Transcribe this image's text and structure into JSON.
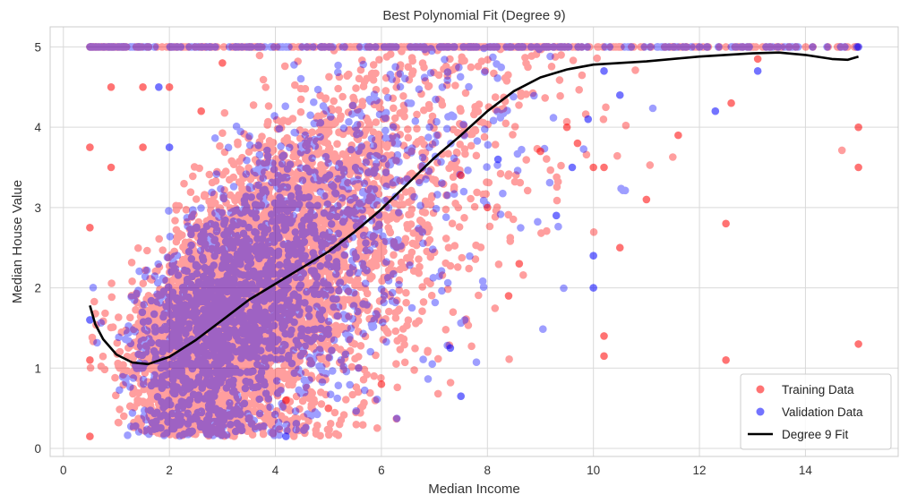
{
  "chart_data": {
    "type": "scatter",
    "title": "Best Polynomial Fit (Degree 9)",
    "xlabel": "Median Income",
    "ylabel": "Median House Value",
    "xlim": [
      -0.25,
      15.75
    ],
    "ylim": [
      -0.1,
      5.25
    ],
    "xticks": [
      "0",
      "2",
      "4",
      "6",
      "8",
      "10",
      "12",
      "14"
    ],
    "yticks": [
      "0",
      "1",
      "2",
      "3",
      "4",
      "5"
    ],
    "grid": true,
    "legend_position": "bottom-right",
    "series": [
      {
        "name": "Training Data",
        "kind": "scatter",
        "color": "#ff0000",
        "opacity": 0.55,
        "approx_points": 14000,
        "distribution": "dense cloud rising from ~(1.5, 0.6) to ~(7, 4.5); cap line at y=5 across x 0.5-15",
        "sample_points": [
          [
            0.5,
            0.15
          ],
          [
            0.5,
            3.75
          ],
          [
            0.5,
            2.75
          ],
          [
            0.5,
            1.1
          ],
          [
            0.9,
            3.5
          ],
          [
            0.9,
            4.5
          ],
          [
            1.5,
            4.5
          ],
          [
            1.5,
            3.75
          ],
          [
            2.0,
            4.5
          ],
          [
            2.6,
            4.2
          ],
          [
            3.0,
            4.8
          ],
          [
            4.2,
            0.6
          ],
          [
            5.0,
            0.5
          ],
          [
            6.0,
            0.8
          ],
          [
            7.5,
            3.4
          ],
          [
            8.0,
            3.0
          ],
          [
            8.4,
            1.9
          ],
          [
            8.6,
            2.3
          ],
          [
            9.0,
            3.7
          ],
          [
            9.5,
            4.0
          ],
          [
            9.7,
            3.8
          ],
          [
            10.0,
            3.5
          ],
          [
            10.2,
            3.5
          ],
          [
            10.2,
            1.4
          ],
          [
            10.2,
            1.15
          ],
          [
            10.5,
            2.5
          ],
          [
            11.0,
            3.1
          ],
          [
            11.6,
            3.9
          ],
          [
            12.5,
            2.8
          ],
          [
            12.5,
            1.1
          ],
          [
            12.6,
            4.3
          ],
          [
            13.1,
            4.85
          ],
          [
            15.0,
            4.0
          ],
          [
            15.0,
            3.5
          ],
          [
            15.0,
            1.3
          ]
        ]
      },
      {
        "name": "Validation Data",
        "kind": "scatter",
        "color": "#0000ff",
        "opacity": 0.55,
        "approx_points": 3000,
        "distribution": "same pattern as training data, slightly sparser; cap line at y=5",
        "sample_points": [
          [
            0.5,
            1.6
          ],
          [
            1.8,
            4.5
          ],
          [
            2.0,
            3.75
          ],
          [
            4.2,
            0.15
          ],
          [
            7.5,
            0.65
          ],
          [
            7.3,
            1.25
          ],
          [
            8.2,
            3.6
          ],
          [
            9.3,
            2.9
          ],
          [
            9.6,
            3.5
          ],
          [
            9.9,
            4.1
          ],
          [
            10.0,
            2.4
          ],
          [
            10.0,
            2.0
          ],
          [
            10.2,
            4.7
          ],
          [
            10.5,
            4.4
          ],
          [
            12.3,
            4.2
          ],
          [
            13.1,
            4.7
          ],
          [
            15.0,
            5.0
          ]
        ]
      },
      {
        "name": "Degree 9 Fit",
        "kind": "line",
        "color": "#000000",
        "points": [
          [
            0.5,
            1.78
          ],
          [
            0.6,
            1.55
          ],
          [
            0.75,
            1.36
          ],
          [
            1.0,
            1.17
          ],
          [
            1.3,
            1.07
          ],
          [
            1.6,
            1.05
          ],
          [
            2.0,
            1.14
          ],
          [
            2.5,
            1.35
          ],
          [
            3.0,
            1.6
          ],
          [
            3.5,
            1.85
          ],
          [
            4.0,
            2.05
          ],
          [
            4.5,
            2.25
          ],
          [
            5.0,
            2.45
          ],
          [
            5.5,
            2.7
          ],
          [
            6.0,
            2.98
          ],
          [
            6.5,
            3.3
          ],
          [
            7.0,
            3.62
          ],
          [
            7.5,
            3.9
          ],
          [
            8.0,
            4.2
          ],
          [
            8.5,
            4.45
          ],
          [
            9.0,
            4.62
          ],
          [
            9.5,
            4.72
          ],
          [
            10.0,
            4.78
          ],
          [
            11.0,
            4.82
          ],
          [
            12.0,
            4.88
          ],
          [
            13.0,
            4.92
          ],
          [
            13.5,
            4.93
          ],
          [
            14.0,
            4.9
          ],
          [
            14.5,
            4.85
          ],
          [
            14.8,
            4.84
          ],
          [
            15.0,
            4.88
          ]
        ]
      }
    ]
  }
}
